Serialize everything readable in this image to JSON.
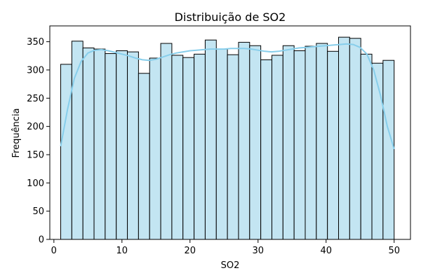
{
  "chart_data": {
    "type": "bar",
    "title": "Distribuição de SO2",
    "xlabel": "SO2",
    "ylabel": "Frequência",
    "xlim": [
      -0.6,
      52.4
    ],
    "ylim": [
      0,
      378
    ],
    "xticks": [
      0,
      10,
      20,
      30,
      40,
      50
    ],
    "yticks": [
      0,
      50,
      100,
      150,
      200,
      250,
      300,
      350
    ],
    "bins": {
      "start": 1.0,
      "width": 1.6333,
      "counts": [
        310,
        351,
        339,
        337,
        329,
        334,
        332,
        294,
        321,
        347,
        326,
        322,
        328,
        353,
        337,
        327,
        349,
        343,
        318,
        326,
        343,
        334,
        342,
        347,
        333,
        358,
        356,
        328,
        312,
        317
      ]
    },
    "kde_curve": {
      "x": [
        1,
        2,
        3,
        4,
        5,
        6,
        7,
        8,
        9,
        10,
        11,
        12,
        13,
        14,
        15,
        16,
        17,
        18,
        19,
        20,
        21,
        22,
        23,
        24,
        25,
        26,
        27,
        28,
        29,
        30,
        31,
        32,
        33,
        34,
        35,
        36,
        37,
        38,
        39,
        40,
        41,
        42,
        43,
        44,
        45,
        46,
        47,
        48,
        49,
        50
      ],
      "y": [
        165,
        230,
        285,
        315,
        330,
        335,
        336,
        334,
        331,
        328,
        325,
        321,
        318,
        317,
        319,
        323,
        327,
        330,
        332,
        334,
        335,
        336,
        337,
        337,
        337,
        338,
        338,
        338,
        337,
        335,
        333,
        332,
        333,
        335,
        337,
        339,
        340,
        341,
        342,
        343,
        344,
        345,
        346,
        345,
        340,
        328,
        300,
        255,
        200,
        160
      ]
    },
    "grid": false,
    "colors": {
      "bar_fill": "#c3e5f2",
      "bar_edge": "#000000",
      "kde_line": "#87ceeb"
    }
  }
}
